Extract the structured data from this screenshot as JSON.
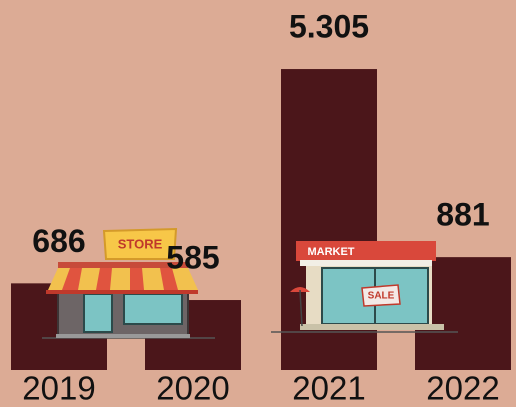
{
  "chart_data": {
    "type": "bar",
    "categories": [
      "2019",
      "2020",
      "2021",
      "2022"
    ],
    "values": [
      686,
      585,
      5305,
      881
    ],
    "value_labels": [
      "686",
      "585",
      "5.305",
      "881"
    ],
    "color": "#4b161a",
    "log": true,
    "ylim": [
      300,
      7000
    ]
  },
  "illustration_labels": {
    "store_sign": "STORE",
    "market_sign": "MARKET",
    "sale_sign": "SALE"
  }
}
